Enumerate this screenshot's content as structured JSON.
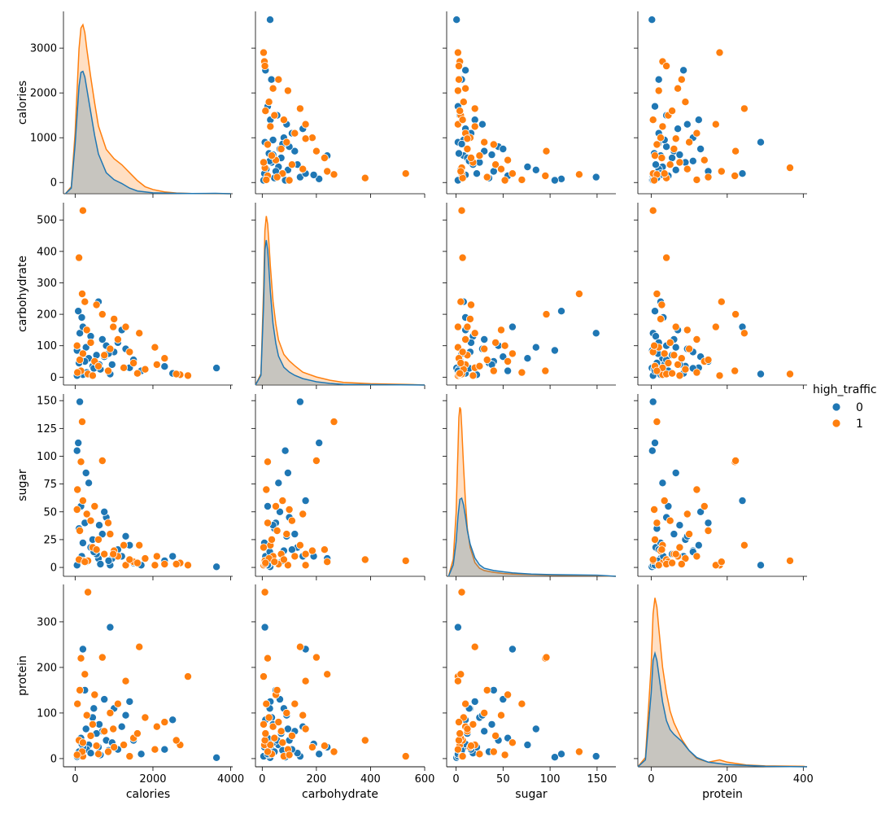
{
  "chart_data": {
    "type": "scatter",
    "kind": "pairplot",
    "variables": [
      "calories",
      "carbohydrate",
      "sugar",
      "protein"
    ],
    "hue": "high_traffic",
    "hue_levels": [
      "0",
      "1"
    ],
    "colors": {
      "0": "#1f77b4",
      "1": "#ff7f0e",
      "overlap_fill": "#bdbdbd"
    },
    "legend": {
      "title": "high_traffic",
      "labels": [
        "0",
        "1"
      ],
      "placement": "right-center"
    },
    "axes": {
      "calories": {
        "label": "calories",
        "lim": [
          -300,
          4050
        ],
        "ticks": [
          0,
          2000,
          4000
        ],
        "tick_labels": [
          "0",
          "2000",
          "4000"
        ],
        "y_ticks": [
          0,
          1000,
          2000,
          3000
        ],
        "y_tick_labels": [
          "0",
          "1000",
          "2000",
          "3000"
        ],
        "y_lim": [
          -250,
          3820
        ]
      },
      "carbohydrate": {
        "label": "carbohydrate",
        "lim": [
          -25,
          600
        ],
        "ticks": [
          0,
          200,
          400,
          600
        ],
        "tick_labels": [
          "0",
          "200",
          "400",
          "600"
        ],
        "y_ticks": [
          0,
          100,
          200,
          300,
          400,
          500
        ],
        "y_tick_labels": [
          "0",
          "100",
          "200",
          "300",
          "400",
          "500"
        ],
        "y_lim": [
          -25,
          555
        ]
      },
      "sugar": {
        "label": "sugar",
        "lim": [
          -10,
          170
        ],
        "ticks": [
          0,
          50,
          100,
          150
        ],
        "tick_labels": [
          "0",
          "50",
          "100",
          "150"
        ],
        "y_ticks": [
          0,
          25,
          50,
          75,
          100,
          125,
          150
        ],
        "y_tick_labels": [
          "0",
          "25",
          "50",
          "75",
          "100",
          "125",
          "150"
        ],
        "y_lim": [
          -8,
          156
        ]
      },
      "protein": {
        "label": "protein",
        "lim": [
          -35,
          410
        ],
        "ticks": [
          0,
          200,
          400
        ],
        "tick_labels": [
          "0",
          "200",
          "400"
        ],
        "y_ticks": [
          0,
          100,
          200,
          300
        ],
        "y_tick_labels": [
          "0",
          "100",
          "200",
          "300"
        ],
        "y_lim": [
          -18,
          382
        ]
      }
    },
    "kde": {
      "calories": {
        "0": {
          "x": [
            -250,
            -100,
            0,
            100,
            150,
            200,
            250,
            300,
            400,
            500,
            600,
            800,
            1000,
            1200,
            1400,
            1600,
            2000,
            2500,
            3000,
            3600,
            4000
          ],
          "y": [
            0,
            120,
            1050,
            2300,
            2600,
            2620,
            2500,
            2250,
            1750,
            1250,
            850,
            450,
            300,
            220,
            120,
            60,
            20,
            10,
            5,
            8,
            0
          ]
        },
        "1": {
          "x": [
            -250,
            -100,
            0,
            100,
            150,
            200,
            250,
            300,
            400,
            500,
            600,
            800,
            1000,
            1200,
            1400,
            1600,
            1800,
            2000,
            2300,
            2600,
            3000,
            3600,
            4000
          ],
          "y": [
            0,
            150,
            1300,
            3100,
            3550,
            3620,
            3450,
            3100,
            2500,
            1950,
            1450,
            950,
            750,
            620,
            450,
            280,
            150,
            90,
            40,
            15,
            5,
            2,
            0
          ]
        }
      },
      "carbohydrate": {
        "0": {
          "x": [
            -25,
            -5,
            5,
            10,
            15,
            20,
            25,
            30,
            40,
            50,
            60,
            80,
            100,
            120,
            150,
            200,
            250,
            300,
            600
          ],
          "y": [
            0,
            30,
            250,
            420,
            450,
            420,
            360,
            290,
            190,
            130,
            90,
            55,
            40,
            30,
            20,
            10,
            5,
            2,
            0
          ]
        },
        "1": {
          "x": [
            -25,
            -5,
            5,
            10,
            15,
            20,
            25,
            30,
            40,
            50,
            60,
            80,
            100,
            120,
            150,
            200,
            250,
            300,
            400,
            530,
            600
          ],
          "y": [
            0,
            35,
            300,
            480,
            525,
            500,
            440,
            370,
            260,
            190,
            140,
            95,
            75,
            60,
            40,
            25,
            15,
            8,
            4,
            2,
            0
          ]
        }
      },
      "sugar": {
        "0": {
          "x": [
            -8,
            -3,
            0,
            2,
            4,
            6,
            8,
            10,
            12,
            15,
            20,
            25,
            30,
            40,
            50,
            60,
            80,
            100,
            150,
            170
          ],
          "y": [
            0,
            10,
            30,
            52,
            67,
            68,
            62,
            52,
            40,
            28,
            16,
            10,
            7,
            5,
            4,
            3,
            2,
            1.5,
            1,
            0
          ]
        },
        "1": {
          "x": [
            -8,
            -3,
            0,
            2,
            3,
            4,
            5,
            6,
            8,
            10,
            12,
            15,
            20,
            25,
            30,
            40,
            50,
            60,
            80,
            100,
            150,
            170
          ],
          "y": [
            0,
            15,
            55,
            110,
            138,
            147,
            145,
            130,
            95,
            65,
            42,
            25,
            12,
            7,
            5,
            3.5,
            2.5,
            2,
            1.5,
            1,
            0.5,
            0
          ]
        }
      },
      "protein": {
        "0": {
          "x": [
            -35,
            -15,
            0,
            5,
            10,
            15,
            20,
            30,
            40,
            50,
            60,
            80,
            100,
            120,
            150,
            200,
            250,
            300,
            410
          ],
          "y": [
            0,
            15,
            160,
            230,
            245,
            230,
            200,
            140,
            100,
            80,
            70,
            55,
            35,
            20,
            10,
            5,
            3,
            1,
            0
          ]
        },
        "1": {
          "x": [
            -35,
            -15,
            0,
            5,
            10,
            15,
            20,
            30,
            40,
            50,
            60,
            80,
            100,
            120,
            150,
            180,
            200,
            250,
            300,
            400,
            410
          ],
          "y": [
            0,
            20,
            220,
            330,
            365,
            345,
            300,
            215,
            160,
            120,
            95,
            60,
            35,
            18,
            10,
            15,
            10,
            4,
            2,
            1,
            0
          ]
        }
      }
    },
    "points": {
      "0": [
        {
          "calories": 3634,
          "carbohydrate": 29,
          "sugar": 0.6,
          "protein": 2
        },
        {
          "calories": 2507,
          "carbohydrate": 12,
          "sugar": 10,
          "protein": 85
        },
        {
          "calories": 2300,
          "carbohydrate": 34,
          "sugar": 6,
          "protein": 20
        },
        {
          "calories": 900,
          "carbohydrate": 10,
          "sugar": 2,
          "protein": 288
        },
        {
          "calories": 120,
          "carbohydrate": 140,
          "sugar": 149,
          "protein": 5
        },
        {
          "calories": 80,
          "carbohydrate": 210,
          "sugar": 112,
          "protein": 10
        },
        {
          "calories": 50,
          "carbohydrate": 85,
          "sugar": 105,
          "protein": 3
        },
        {
          "calories": 600,
          "carbohydrate": 240,
          "sugar": 8,
          "protein": 25
        },
        {
          "calories": 1400,
          "carbohydrate": 30,
          "sugar": 20,
          "protein": 125
        },
        {
          "calories": 200,
          "carbohydrate": 160,
          "sugar": 60,
          "protein": 240
        },
        {
          "calories": 350,
          "carbohydrate": 60,
          "sugar": 76,
          "protein": 30
        },
        {
          "calories": 250,
          "carbohydrate": 50,
          "sugar": 40,
          "protein": 150
        },
        {
          "calories": 700,
          "carbohydrate": 120,
          "sugar": 30,
          "protein": 60
        },
        {
          "calories": 1000,
          "carbohydrate": 80,
          "sugar": 15,
          "protein": 110
        },
        {
          "calories": 150,
          "carbohydrate": 20,
          "sugar": 55,
          "protein": 45
        },
        {
          "calories": 450,
          "carbohydrate": 35,
          "sugar": 25,
          "protein": 90
        },
        {
          "calories": 800,
          "carbohydrate": 100,
          "sugar": 45,
          "protein": 40
        },
        {
          "calories": 1200,
          "carbohydrate": 150,
          "sugar": 10,
          "protein": 70
        },
        {
          "calories": 300,
          "carbohydrate": 15,
          "sugar": 5,
          "protein": 20
        },
        {
          "calories": 100,
          "carbohydrate": 45,
          "sugar": 35,
          "protein": 15
        },
        {
          "calories": 550,
          "carbohydrate": 70,
          "sugar": 12,
          "protein": 55
        },
        {
          "calories": 950,
          "carbohydrate": 40,
          "sugar": 8,
          "protein": 35
        },
        {
          "calories": 1300,
          "carbohydrate": 90,
          "sugar": 28,
          "protein": 95
        },
        {
          "calories": 400,
          "carbohydrate": 130,
          "sugar": 18,
          "protein": 12
        },
        {
          "calories": 650,
          "carbohydrate": 25,
          "sugar": 3,
          "protein": 8
        },
        {
          "calories": 200,
          "carbohydrate": 8,
          "sugar": 22,
          "protein": 25
        },
        {
          "calories": 1500,
          "carbohydrate": 55,
          "sugar": 4,
          "protein": 40
        },
        {
          "calories": 750,
          "carbohydrate": 65,
          "sugar": 50,
          "protein": 130
        },
        {
          "calories": 1100,
          "carbohydrate": 110,
          "sugar": 16,
          "protein": 20
        },
        {
          "calories": 50,
          "carbohydrate": 5,
          "sugar": 2,
          "protein": 5
        },
        {
          "calories": 280,
          "carbohydrate": 95,
          "sugar": 85,
          "protein": 65
        },
        {
          "calories": 480,
          "carbohydrate": 28,
          "sugar": 14,
          "protein": 110
        },
        {
          "calories": 860,
          "carbohydrate": 75,
          "sugar": 6,
          "protein": 18
        },
        {
          "calories": 1700,
          "carbohydrate": 20,
          "sugar": 2,
          "protein": 10
        },
        {
          "calories": 170,
          "carbohydrate": 190,
          "sugar": 10,
          "protein": 32
        },
        {
          "calories": 620,
          "carbohydrate": 40,
          "sugar": 38,
          "protein": 75
        }
      ],
      "1": [
        {
          "calories": 2900,
          "carbohydrate": 5,
          "sugar": 2,
          "protein": 180
        },
        {
          "calories": 2700,
          "carbohydrate": 8,
          "sugar": 4,
          "protein": 30
        },
        {
          "calories": 2100,
          "carbohydrate": 40,
          "sugar": 10,
          "protein": 70
        },
        {
          "calories": 1650,
          "carbohydrate": 140,
          "sugar": 20,
          "protein": 245
        },
        {
          "calories": 200,
          "carbohydrate": 530,
          "sugar": 6,
          "protein": 5
        },
        {
          "calories": 100,
          "carbohydrate": 380,
          "sugar": 7,
          "protein": 40
        },
        {
          "calories": 180,
          "carbohydrate": 265,
          "sugar": 131,
          "protein": 15
        },
        {
          "calories": 330,
          "carbohydrate": 10,
          "sugar": 6,
          "protein": 365
        },
        {
          "calories": 150,
          "carbohydrate": 20,
          "sugar": 95,
          "protein": 220
        },
        {
          "calories": 700,
          "carbohydrate": 200,
          "sugar": 96,
          "protein": 222
        },
        {
          "calories": 1300,
          "carbohydrate": 160,
          "sugar": 2,
          "protein": 170
        },
        {
          "calories": 250,
          "carbohydrate": 240,
          "sugar": 5,
          "protein": 185
        },
        {
          "calories": 500,
          "carbohydrate": 50,
          "sugar": 55,
          "protein": 140
        },
        {
          "calories": 900,
          "carbohydrate": 90,
          "sugar": 30,
          "protein": 100
        },
        {
          "calories": 1800,
          "carbohydrate": 25,
          "sugar": 8,
          "protein": 90
        },
        {
          "calories": 2300,
          "carbohydrate": 60,
          "sugar": 3,
          "protein": 80
        },
        {
          "calories": 400,
          "carbohydrate": 110,
          "sugar": 42,
          "protein": 50
        },
        {
          "calories": 1000,
          "carbohydrate": 185,
          "sugar": 15,
          "protein": 25
        },
        {
          "calories": 60,
          "carbohydrate": 15,
          "sugar": 70,
          "protein": 120
        },
        {
          "calories": 750,
          "carbohydrate": 70,
          "sugar": 12,
          "protein": 60
        },
        {
          "calories": 1250,
          "carbohydrate": 30,
          "sugar": 20,
          "protein": 30
        },
        {
          "calories": 300,
          "carbohydrate": 150,
          "sugar": 48,
          "protein": 95
        },
        {
          "calories": 1500,
          "carbohydrate": 45,
          "sugar": 5,
          "protein": 45
        },
        {
          "calories": 2050,
          "carbohydrate": 95,
          "sugar": 2,
          "protein": 20
        },
        {
          "calories": 600,
          "carbohydrate": 35,
          "sugar": 25,
          "protein": 10
        },
        {
          "calories": 200,
          "carbohydrate": 75,
          "sugar": 60,
          "protein": 35
        },
        {
          "calories": 1100,
          "carbohydrate": 120,
          "sugar": 10,
          "protein": 120
        },
        {
          "calories": 850,
          "carbohydrate": 20,
          "sugar": 40,
          "protein": 15
        },
        {
          "calories": 450,
          "carbohydrate": 5,
          "sugar": 18,
          "protein": 75
        },
        {
          "calories": 1400,
          "carbohydrate": 80,
          "sugar": 7,
          "protein": 5
        },
        {
          "calories": 2600,
          "carbohydrate": 10,
          "sugar": 3,
          "protein": 40
        },
        {
          "calories": 120,
          "carbohydrate": 55,
          "sugar": 33,
          "protein": 150
        },
        {
          "calories": 980,
          "carbohydrate": 160,
          "sugar": 12,
          "protein": 65
        },
        {
          "calories": 550,
          "carbohydrate": 230,
          "sugar": 16,
          "protein": 28
        },
        {
          "calories": 1600,
          "carbohydrate": 12,
          "sugar": 4,
          "protein": 55
        },
        {
          "calories": 50,
          "carbohydrate": 100,
          "sugar": 52,
          "protein": 8
        }
      ]
    }
  }
}
